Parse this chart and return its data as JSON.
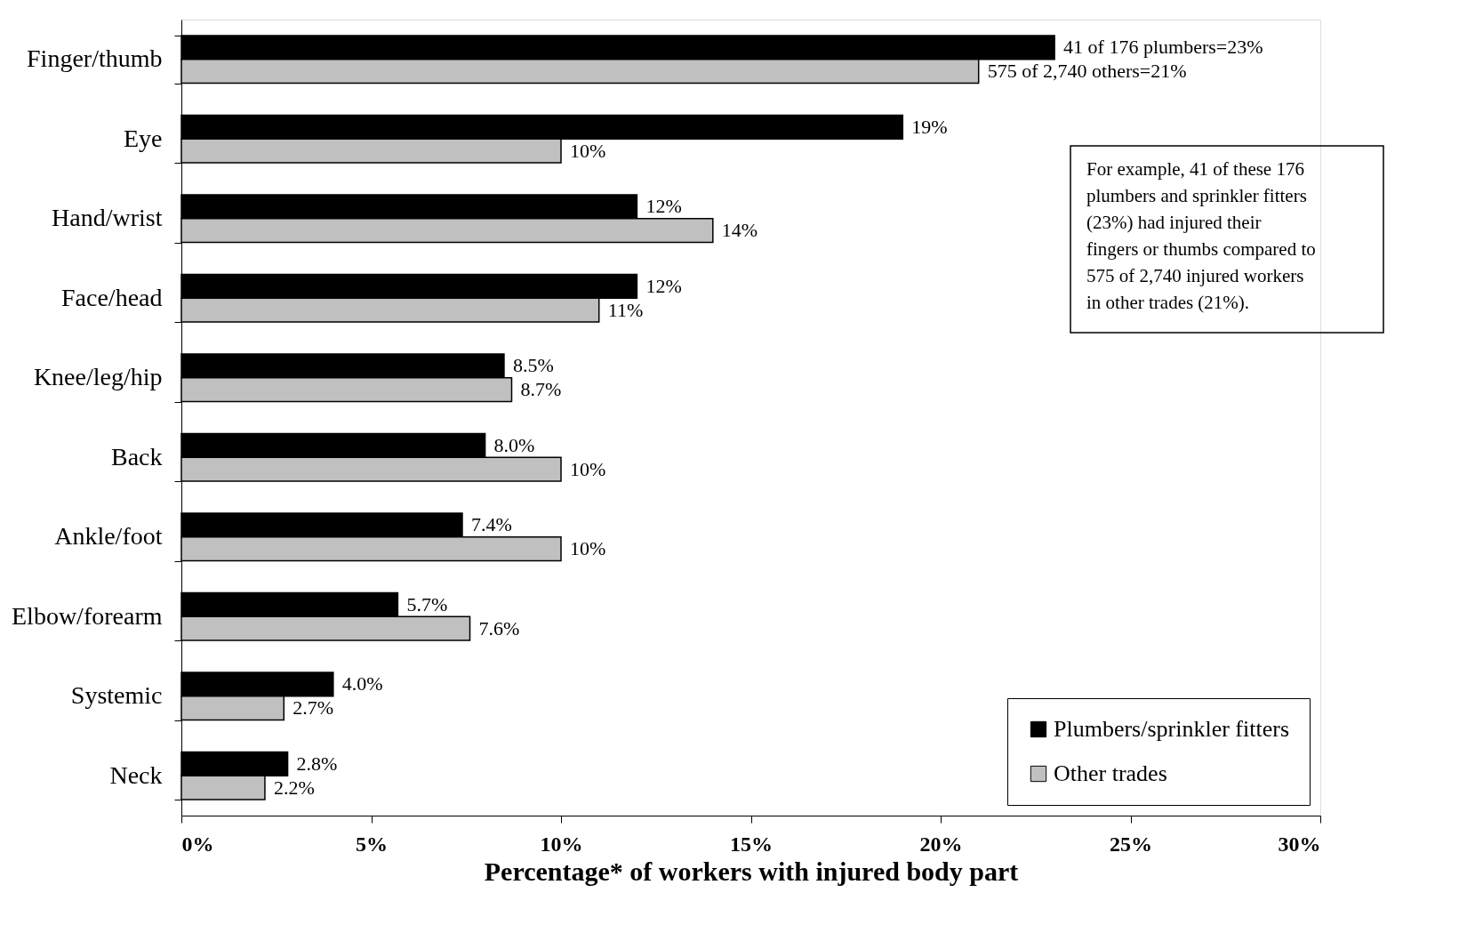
{
  "chart_data": {
    "type": "bar",
    "orientation": "horizontal",
    "xlabel": "Percentage* of workers with injured body part",
    "categories": [
      "Finger/thumb",
      "Eye",
      "Hand/wrist",
      "Face/head",
      "Knee/leg/hip",
      "Back",
      "Ankle/foot",
      "Elbow/forearm",
      "Systemic",
      "Neck"
    ],
    "series": [
      {
        "name": "Plumbers/sprinkler fitters",
        "color": "#000000",
        "values": [
          23,
          19,
          12,
          12,
          8.5,
          8.0,
          7.4,
          5.7,
          4.0,
          2.8
        ],
        "value_labels": [
          "41 of 176 plumbers=23%",
          "19%",
          "12%",
          "12%",
          "8.5%",
          "8.0%",
          "7.4%",
          "5.7%",
          "4.0%",
          "2.8%"
        ]
      },
      {
        "name": "Other trades",
        "color": "#c0c0c0",
        "values": [
          21,
          10,
          14,
          11,
          8.7,
          10,
          10,
          7.6,
          2.7,
          2.2
        ],
        "value_labels": [
          "575 of 2,740 others=21%",
          "10%",
          "14%",
          "11%",
          "8.7%",
          "10%",
          "10%",
          "7.6%",
          "2.7%",
          "2.2%"
        ]
      }
    ],
    "xlim": [
      0,
      30
    ],
    "xticks": [
      {
        "value": 0,
        "label": "0%"
      },
      {
        "value": 5,
        "label": "5%"
      },
      {
        "value": 10,
        "label": "10%"
      },
      {
        "value": 15,
        "label": "15%"
      },
      {
        "value": 20,
        "label": "20%"
      },
      {
        "value": 25,
        "label": "25%"
      },
      {
        "value": 30,
        "label": "30%"
      }
    ],
    "grid": false,
    "legend": "bottom right",
    "annotations": [
      "For example, 41 of these 176 plumbers and sprinkler fitters (23%) had injured their fingers or thumbs compared to 575 of 2,740 injured workers in other trades (21%)."
    ]
  }
}
